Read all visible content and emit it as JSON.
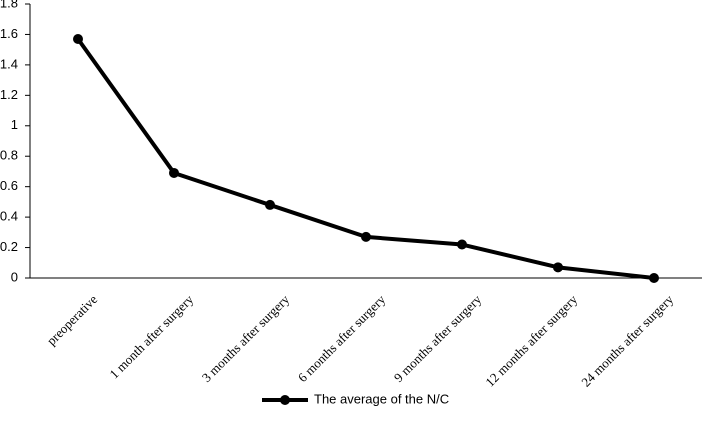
{
  "chart_data": {
    "type": "line",
    "categories": [
      "preoperative",
      "1 month after surgery",
      "3 months after surgery",
      "6 months after surgery",
      "9 months after surgery",
      "12 months after surgery",
      "24 months after surgery"
    ],
    "series": [
      {
        "name": "The average of the N/C",
        "color": "#000000",
        "values": [
          1.57,
          0.69,
          0.48,
          0.27,
          0.22,
          0.07,
          0.0
        ]
      }
    ],
    "ylim": [
      0,
      1.8
    ],
    "yticks": [
      0,
      0.2,
      0.4,
      0.6,
      0.8,
      1,
      1.2,
      1.4,
      1.6,
      1.8
    ],
    "grid": false,
    "legend": "bottom"
  }
}
